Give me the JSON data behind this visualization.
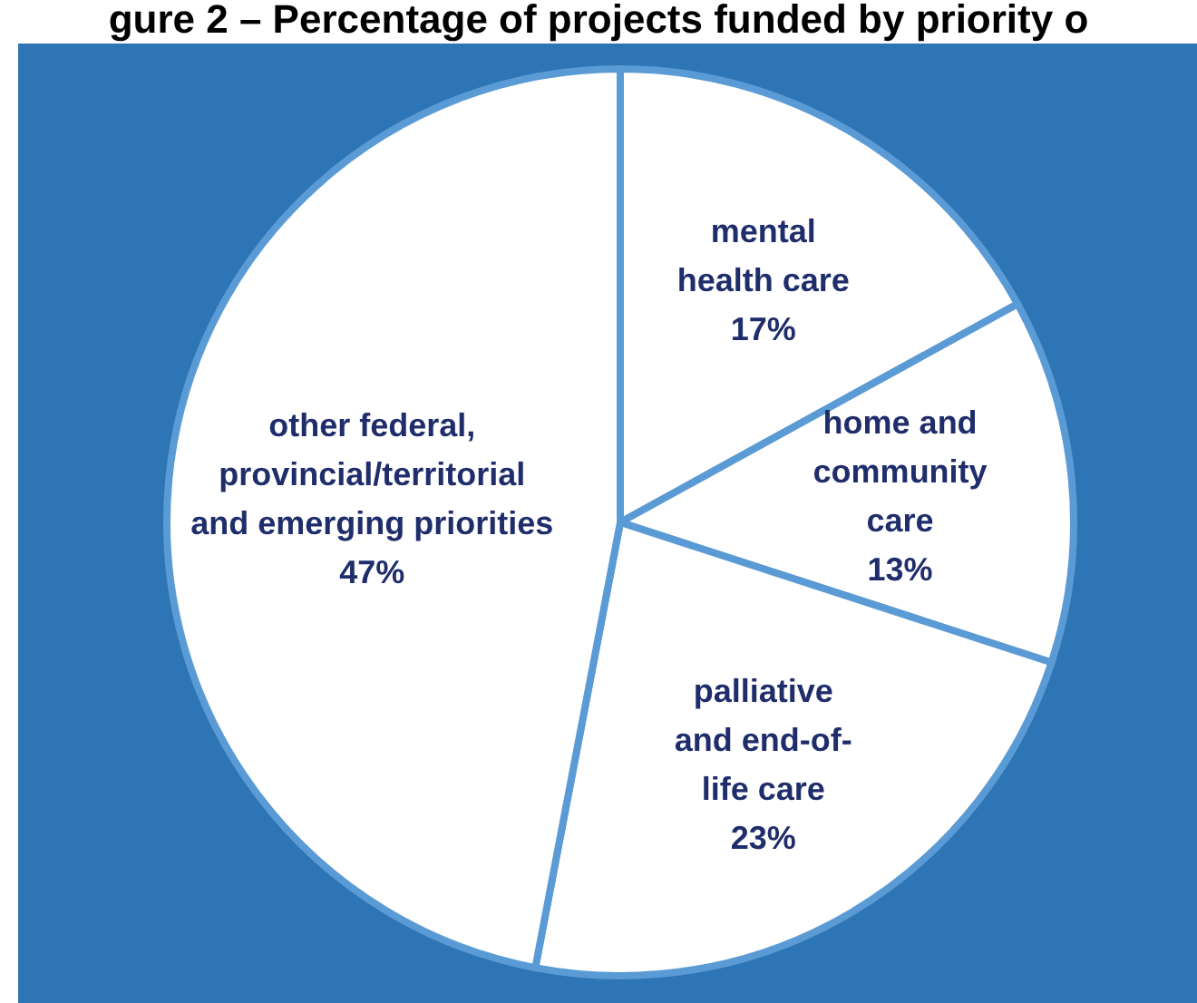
{
  "chart_data": {
    "type": "pie",
    "title": "gure 2 – Percentage of projects funded by priority o",
    "categories": [
      "mental health care",
      "home and community care",
      "palliative and end-of-life care",
      "other federal, provincial/territorial and emerging priorities"
    ],
    "values": [
      17,
      13,
      23,
      47
    ],
    "colors": [
      "#ffffff",
      "#ffffff",
      "#ffffff",
      "#ffffff"
    ],
    "value_labels": [
      "17%",
      "13%",
      "23%",
      "47%"
    ]
  }
}
